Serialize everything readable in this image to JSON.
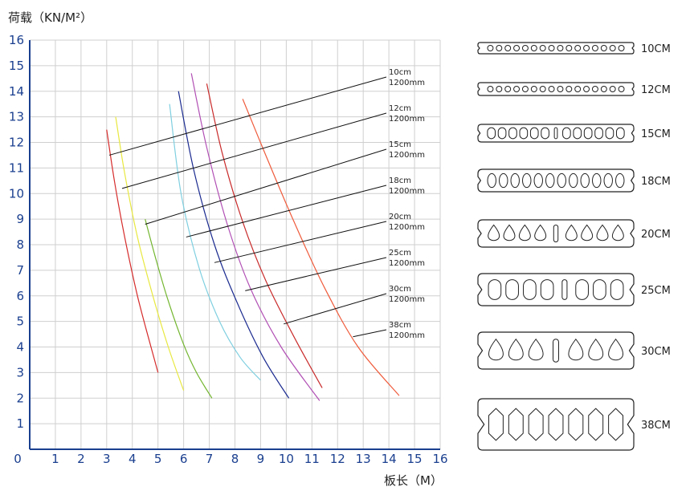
{
  "chart_data": {
    "type": "line",
    "ylabel": "荷载（KN/M²）",
    "xlabel": "板长（M）",
    "xlim": [
      0,
      16
    ],
    "ylim": [
      0,
      16
    ],
    "x_ticks": [
      "0",
      "1",
      "2",
      "3",
      "4",
      "5",
      "6",
      "7",
      "8",
      "9",
      "10",
      "11",
      "12",
      "13",
      "14",
      "15",
      "16"
    ],
    "y_ticks": [
      "1",
      "2",
      "3",
      "4",
      "5",
      "6",
      "7",
      "8",
      "9",
      "10",
      "11",
      "12",
      "13",
      "14",
      "15",
      "16"
    ],
    "grid": true,
    "series": [
      {
        "name": "10cm 1200mm",
        "color": "#d62b2b",
        "x": [
          3.0,
          3.3,
          3.7,
          4.2,
          4.7,
          5.0
        ],
        "y": [
          12.5,
          10.5,
          8.3,
          6.0,
          4.1,
          3.0
        ],
        "label_line1": "10cm",
        "label_line2": "1200mm",
        "label_anchor": [
          3.1,
          11.5
        ]
      },
      {
        "name": "12cm 1200mm",
        "color": "#e8e840",
        "x": [
          3.35,
          3.7,
          4.2,
          4.8,
          5.4,
          6.0
        ],
        "y": [
          13.0,
          10.8,
          8.3,
          6.0,
          4.0,
          2.3
        ],
        "label_line1": "12cm",
        "label_line2": "1200mm",
        "label_anchor": [
          3.6,
          10.2
        ]
      },
      {
        "name": "15cm 1200mm",
        "color": "#72b52e",
        "x": [
          4.5,
          4.9,
          5.4,
          6.0,
          6.5,
          7.1
        ],
        "y": [
          9.0,
          7.5,
          5.8,
          4.1,
          3.0,
          2.0
        ],
        "label_line1": "15cm",
        "label_line2": "1200mm",
        "label_anchor": [
          4.5,
          8.8
        ]
      },
      {
        "name": "18cm 1200mm",
        "color": "#7fcfe0",
        "x": [
          5.45,
          5.9,
          6.6,
          7.4,
          8.2,
          9.0
        ],
        "y": [
          13.5,
          10.0,
          7.1,
          5.0,
          3.6,
          2.7
        ],
        "label_line1": "18cm",
        "label_line2": "1200mm",
        "label_anchor": [
          6.1,
          8.3
        ]
      },
      {
        "name": "20cm 1200mm",
        "color": "#1a2a8f",
        "x": [
          5.8,
          6.4,
          7.2,
          8.1,
          9.1,
          10.1
        ],
        "y": [
          14.0,
          10.9,
          8.0,
          5.7,
          3.6,
          2.0
        ],
        "label_line1": "20cm",
        "label_line2": "1200mm",
        "label_anchor": [
          7.2,
          7.3
        ]
      },
      {
        "name": "25cm 1200mm",
        "color": "#b14fb4",
        "x": [
          6.3,
          6.9,
          7.7,
          8.6,
          9.8,
          11.3
        ],
        "y": [
          14.7,
          11.8,
          8.8,
          6.3,
          4.0,
          1.9
        ],
        "label_line1": "25cm",
        "label_line2": "1200mm",
        "label_anchor": [
          8.4,
          6.2
        ]
      },
      {
        "name": "30cm 1200mm",
        "color": "#c92a2a",
        "x": [
          6.9,
          7.5,
          8.3,
          9.2,
          10.3,
          11.4
        ],
        "y": [
          14.3,
          11.6,
          8.9,
          6.6,
          4.4,
          2.4
        ],
        "label_line1": "30cm",
        "label_line2": "1200mm",
        "label_anchor": [
          9.9,
          4.9
        ]
      },
      {
        "name": "38cm 1200mm",
        "color": "#ef5a3a",
        "x": [
          8.3,
          9.2,
          10.3,
          11.5,
          12.8,
          14.4
        ],
        "y": [
          13.7,
          11.5,
          8.9,
          6.3,
          4.0,
          2.1
        ],
        "label_line1": "38cm",
        "label_line2": "1200mm",
        "label_anchor": [
          12.6,
          4.4
        ]
      }
    ]
  },
  "sections": [
    {
      "label": "10CM",
      "voids": 16,
      "shape": "circle"
    },
    {
      "label": "12CM",
      "voids": 16,
      "shape": "circle"
    },
    {
      "label": "15CM",
      "voids": 13,
      "shape": "oblong"
    },
    {
      "label": "18CM",
      "voids": 12,
      "shape": "oval"
    },
    {
      "label": "20CM",
      "voids": 9,
      "shape": "drop"
    },
    {
      "label": "25CM",
      "voids": 8,
      "shape": "oblong"
    },
    {
      "label": "30CM",
      "voids": 7,
      "shape": "drop"
    },
    {
      "label": "38CM",
      "voids": 7,
      "shape": "hex"
    }
  ]
}
